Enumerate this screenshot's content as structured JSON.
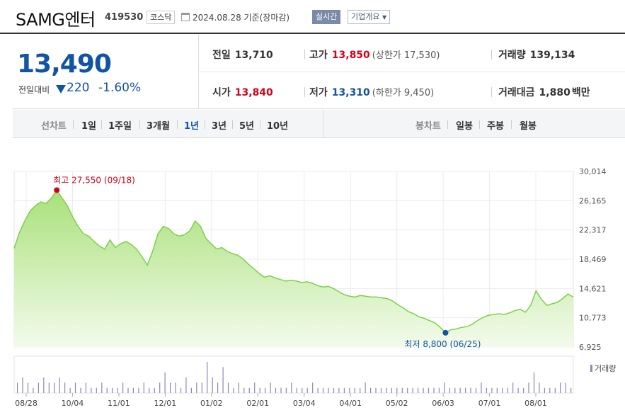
{
  "header": {
    "company_name": "SAMG엔터",
    "stock_code": "419530",
    "market": "코스닥",
    "date": "2024.08.28 기준(장마감)",
    "realtime_label": "실시간",
    "company_overview_label": "기업개요"
  },
  "price": {
    "current": "13,490",
    "change_label": "전일대비",
    "change_amount": "220",
    "change_rate": "-1.60%"
  },
  "stats": {
    "prev_close_label": "전일",
    "prev_close": "13,710",
    "high_label": "고가",
    "high": "13,850",
    "upper_limit": "(상한가 17,530)",
    "volume_label": "거래량",
    "volume": "139,134",
    "open_label": "시가",
    "open": "13,840",
    "low_label": "저가",
    "low": "13,310",
    "lower_limit": "(하한가 9,450)",
    "trade_value_label": "거래대금",
    "trade_value": "1,880",
    "trade_value_unit": "백만"
  },
  "tabs": {
    "line_chart_title": "선차트",
    "line_periods": [
      "1일",
      "1주일",
      "3개월",
      "1년",
      "3년",
      "5년",
      "10년"
    ],
    "active_period": "1년",
    "candle_chart_title": "봉차트",
    "candle_periods": [
      "일봉",
      "주봉",
      "월봉"
    ]
  },
  "chart_data": {
    "type": "area",
    "y_ticks": [
      "30,014",
      "26,165",
      "22,317",
      "18,469",
      "14,621",
      "10,773",
      "6,925"
    ],
    "ylim": [
      6925,
      30014
    ],
    "x_ticks": [
      "08/28",
      "10/04",
      "11/01",
      "12/01",
      "01/02",
      "02/01",
      "03/04",
      "04/01",
      "05/02",
      "06/03",
      "07/01",
      "08/01"
    ],
    "high_annotation": "최고 27,550 (09/18)",
    "low_annotation": "최저 8,800 (06/25)",
    "volume_legend": "거래량",
    "colors": {
      "line": "#7cd14a",
      "fill_top": "#a9e07a",
      "fill_bottom": "#f3fbec",
      "high": "#d0021b",
      "low": "#1253a4",
      "volume": "#8f86b8"
    },
    "price_series": [
      19900,
      22000,
      23500,
      24800,
      25500,
      26000,
      25800,
      26500,
      27550,
      26500,
      25500,
      24000,
      22800,
      21800,
      21500,
      20800,
      20200,
      19800,
      21000,
      20000,
      20500,
      20800,
      20400,
      19800,
      18800,
      17700,
      19500,
      21800,
      22800,
      22500,
      21800,
      21500,
      21700,
      22200,
      23500,
      22800,
      21200,
      20500,
      19800,
      20000,
      19500,
      19200,
      19000,
      18500,
      17800,
      17200,
      16600,
      16100,
      16300,
      16000,
      15800,
      15600,
      15700,
      15600,
      15400,
      15500,
      15300,
      15000,
      14800,
      14900,
      14600,
      14200,
      13800,
      13600,
      13500,
      13700,
      13600,
      13500,
      13500,
      13400,
      13300,
      13000,
      12500,
      12100,
      11600,
      11300,
      10900,
      10700,
      10400,
      10100,
      9500,
      8800,
      9200,
      9300,
      9500,
      9600,
      9900,
      10400,
      10800,
      11100,
      11200,
      11300,
      11200,
      11400,
      11700,
      11900,
      11500,
      12400,
      14300,
      13200,
      12400,
      12600,
      12800,
      13300,
      13900,
      13490
    ],
    "volume_series": [
      2,
      3,
      2,
      1,
      2,
      3,
      2,
      2,
      3,
      2,
      1,
      2,
      1,
      2,
      1,
      1,
      2,
      1,
      1,
      1,
      2,
      1,
      1,
      1,
      2,
      1,
      1,
      2,
      4,
      2,
      2,
      1,
      3,
      1,
      2,
      2,
      6,
      3,
      2,
      5,
      2,
      1,
      2,
      1,
      1,
      2,
      1,
      1,
      2,
      1,
      1,
      1,
      2,
      1,
      1,
      1,
      2,
      1,
      1,
      1,
      1,
      1,
      1,
      1,
      1,
      1,
      2,
      1,
      1,
      1,
      1,
      1,
      1,
      1,
      1,
      1,
      1,
      1,
      1,
      1,
      1,
      2,
      1,
      1,
      1,
      1,
      1,
      1,
      2,
      1,
      1,
      1,
      1,
      1,
      2,
      1,
      1,
      2,
      4,
      2,
      1,
      1,
      1,
      2,
      2,
      1
    ]
  }
}
